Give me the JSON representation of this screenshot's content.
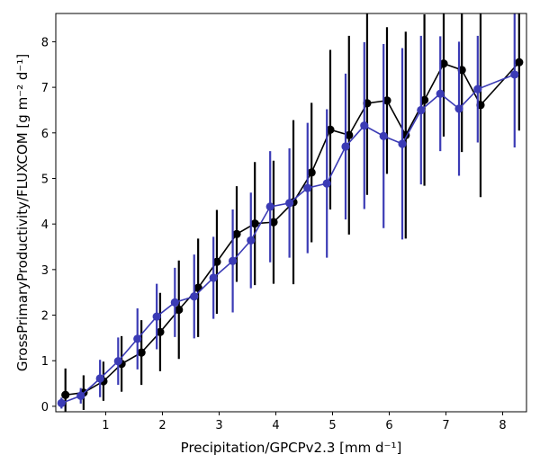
{
  "chart_data": {
    "type": "line",
    "title": "",
    "xlabel": "Precipitation/GPCPv2.3 [mm d⁻¹]",
    "ylabel": "GrossPrimaryProductivity/FLUXCOM [g m⁻² d⁻¹]",
    "xlim": [
      0.12,
      8.42
    ],
    "ylim": [
      -0.12,
      8.62
    ],
    "xticks": [
      1,
      2,
      3,
      4,
      5,
      6,
      7,
      8
    ],
    "yticks": [
      0,
      1,
      2,
      3,
      4,
      5,
      6,
      7,
      8
    ],
    "grid": false,
    "legend": "none",
    "series": [
      {
        "color": "#000000",
        "x": [
          0.29,
          0.61,
          0.96,
          1.28,
          1.63,
          1.96,
          2.29,
          2.63,
          2.96,
          3.31,
          3.63,
          3.96,
          4.31,
          4.63,
          4.96,
          5.29,
          5.61,
          5.96,
          6.29,
          6.62,
          6.96,
          7.28,
          7.61,
          8.29
        ],
        "y": [
          0.25,
          0.3,
          0.55,
          0.93,
          1.18,
          1.63,
          2.12,
          2.6,
          3.17,
          3.78,
          4.01,
          4.04,
          4.48,
          5.13,
          6.07,
          5.95,
          6.65,
          6.71,
          5.95,
          6.72,
          7.52,
          7.38,
          6.61,
          7.55
        ],
        "err": [
          0.58,
          0.38,
          0.43,
          0.61,
          0.71,
          0.86,
          1.08,
          1.08,
          1.14,
          1.05,
          1.35,
          1.35,
          1.8,
          1.53,
          1.75,
          2.18,
          2.01,
          1.61,
          2.27,
          1.88,
          1.6,
          1.8,
          2.02,
          1.5
        ]
      },
      {
        "color": "#3b3bb5",
        "x": [
          0.22,
          0.56,
          0.9,
          1.22,
          1.56,
          1.9,
          2.22,
          2.56,
          2.9,
          3.24,
          3.56,
          3.9,
          4.24,
          4.56,
          4.9,
          5.23,
          5.56,
          5.9,
          6.23,
          6.56,
          6.9,
          7.23,
          7.56,
          8.21
        ],
        "y": [
          0.07,
          0.23,
          0.61,
          0.99,
          1.48,
          1.97,
          2.28,
          2.41,
          2.82,
          3.19,
          3.64,
          4.38,
          4.46,
          4.79,
          4.89,
          5.7,
          6.16,
          5.93,
          5.76,
          6.5,
          6.86,
          6.53,
          6.96,
          7.28
        ],
        "err": [
          0.12,
          0.17,
          0.41,
          0.52,
          0.67,
          0.72,
          0.76,
          0.92,
          0.9,
          1.13,
          1.05,
          1.22,
          1.2,
          1.43,
          1.63,
          1.6,
          1.83,
          2.02,
          2.1,
          1.63,
          1.26,
          1.47,
          1.17,
          1.6
        ]
      }
    ]
  }
}
